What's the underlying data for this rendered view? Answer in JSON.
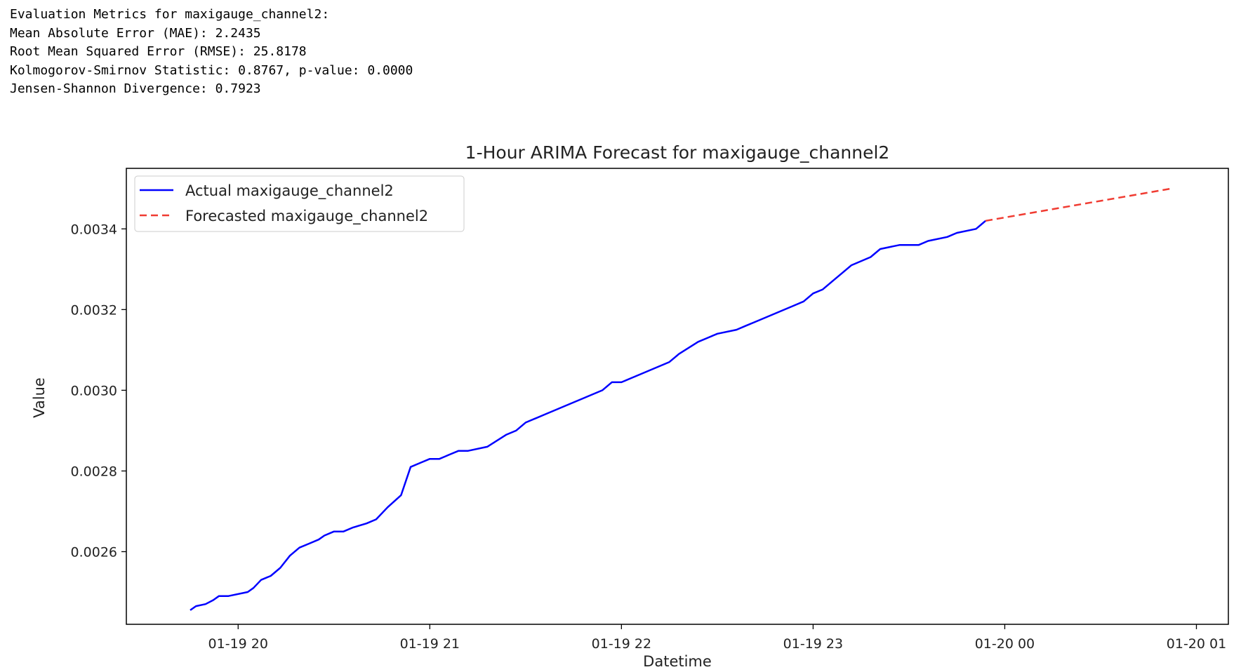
{
  "metrics": {
    "heading": "Evaluation Metrics for maxigauge_channel2:",
    "mae": "Mean Absolute Error (MAE): 2.2435",
    "rmse": "Root Mean Squared Error (RMSE): 25.8178",
    "ks": "Kolmogorov-Smirnov Statistic: 0.8767, p-value: 0.0000",
    "js": "Jensen-Shannon Divergence: 0.7923"
  },
  "chart_data": {
    "type": "line",
    "title": "1-Hour ARIMA Forecast for maxigauge_channel2",
    "xlabel": "Datetime",
    "ylabel": "Value",
    "x_range": [
      "2025-01-19 19:25",
      "2025-01-20 01:10"
    ],
    "ylim": [
      0.00242,
      0.00355
    ],
    "grid": false,
    "legend_position": "top-left",
    "x_ticks": [
      {
        "t": 20,
        "label": "01-19 20"
      },
      {
        "t": 21,
        "label": "01-19 21"
      },
      {
        "t": 22,
        "label": "01-19 22"
      },
      {
        "t": 23,
        "label": "01-19 23"
      },
      {
        "t": 24,
        "label": "01-20 00"
      },
      {
        "t": 25,
        "label": "01-20 01"
      }
    ],
    "y_ticks": [
      {
        "v": 0.0026,
        "label": "0.0026"
      },
      {
        "v": 0.0028,
        "label": "0.0028"
      },
      {
        "v": 0.003,
        "label": "0.0030"
      },
      {
        "v": 0.0032,
        "label": "0.0032"
      },
      {
        "v": 0.0034,
        "label": "0.0034"
      }
    ],
    "series": [
      {
        "name": "Actual maxigauge_channel2",
        "color": "#0000ff",
        "style": "solid",
        "x_hours": [
          19.75,
          19.78,
          19.83,
          19.87,
          19.9,
          19.95,
          20.05,
          20.08,
          20.12,
          20.17,
          20.22,
          20.27,
          20.32,
          20.37,
          20.42,
          20.45,
          20.5,
          20.55,
          20.6,
          20.67,
          20.72,
          20.78,
          20.85,
          20.9,
          20.95,
          21.0,
          21.02,
          21.05,
          21.1,
          21.15,
          21.2,
          21.3,
          21.4,
          21.45,
          21.5,
          21.6,
          21.65,
          21.7,
          21.75,
          21.8,
          21.85,
          21.9,
          21.95,
          22.0,
          22.05,
          22.1,
          22.15,
          22.25,
          22.3,
          22.4,
          22.45,
          22.5,
          22.6,
          22.65,
          22.7,
          22.8,
          22.9,
          22.95,
          23.0,
          23.05,
          23.1,
          23.15,
          23.2,
          23.3,
          23.35,
          23.45,
          23.55,
          23.6,
          23.7,
          23.75,
          23.85,
          23.9
        ],
        "y": [
          0.002455,
          0.002465,
          0.00247,
          0.00248,
          0.00249,
          0.00249,
          0.0025,
          0.00251,
          0.00253,
          0.00254,
          0.00256,
          0.00259,
          0.00261,
          0.00262,
          0.00263,
          0.00264,
          0.00265,
          0.00265,
          0.00266,
          0.00267,
          0.00268,
          0.00271,
          0.00274,
          0.00281,
          0.00282,
          0.00283,
          0.00283,
          0.00283,
          0.00284,
          0.00285,
          0.00285,
          0.00286,
          0.00289,
          0.0029,
          0.00292,
          0.00294,
          0.00295,
          0.00296,
          0.00297,
          0.00298,
          0.00299,
          0.003,
          0.00302,
          0.00302,
          0.00303,
          0.00304,
          0.00305,
          0.00307,
          0.00309,
          0.00312,
          0.00313,
          0.00314,
          0.00315,
          0.00316,
          0.00317,
          0.00319,
          0.00321,
          0.00322,
          0.00324,
          0.00325,
          0.00327,
          0.00329,
          0.00331,
          0.00333,
          0.00335,
          0.00336,
          0.00336,
          0.00337,
          0.00338,
          0.00339,
          0.0034,
          0.00342
        ]
      },
      {
        "name": "Forecasted maxigauge_channel2",
        "color": "#f03c32",
        "style": "dashed",
        "x_hours": [
          23.9,
          24.87
        ],
        "y": [
          0.00342,
          0.0035
        ]
      }
    ]
  }
}
